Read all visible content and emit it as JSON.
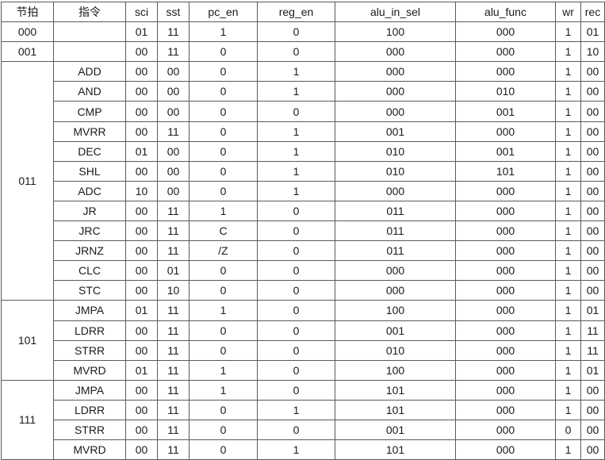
{
  "headers": [
    "节拍",
    "指令",
    "sci",
    "sst",
    "pc_en",
    "reg_en",
    "alu_in_sel",
    "alu_func",
    "wr",
    "rec"
  ],
  "groups": [
    {
      "beat": "000",
      "rows": [
        {
          "instr": "",
          "sci": "01",
          "sst": "11",
          "pc_en": "1",
          "reg_en": "0",
          "alu_in_sel": "100",
          "alu_func": "000",
          "wr": "1",
          "rec": "01"
        }
      ]
    },
    {
      "beat": "001",
      "rows": [
        {
          "instr": "",
          "sci": "00",
          "sst": "11",
          "pc_en": "0",
          "reg_en": "0",
          "alu_in_sel": "000",
          "alu_func": "000",
          "wr": "1",
          "rec": "10"
        }
      ]
    },
    {
      "beat": "011",
      "rows": [
        {
          "instr": "ADD",
          "sci": "00",
          "sst": "00",
          "pc_en": "0",
          "reg_en": "1",
          "alu_in_sel": "000",
          "alu_func": "000",
          "wr": "1",
          "rec": "00"
        },
        {
          "instr": "AND",
          "sci": "00",
          "sst": "00",
          "pc_en": "0",
          "reg_en": "1",
          "alu_in_sel": "000",
          "alu_func": "010",
          "wr": "1",
          "rec": "00"
        },
        {
          "instr": "CMP",
          "sci": "00",
          "sst": "00",
          "pc_en": "0",
          "reg_en": "0",
          "alu_in_sel": "000",
          "alu_func": "001",
          "wr": "1",
          "rec": "00"
        },
        {
          "instr": "MVRR",
          "sci": "00",
          "sst": "11",
          "pc_en": "0",
          "reg_en": "1",
          "alu_in_sel": "001",
          "alu_func": "000",
          "wr": "1",
          "rec": "00"
        },
        {
          "instr": "DEC",
          "sci": "01",
          "sst": "00",
          "pc_en": "0",
          "reg_en": "1",
          "alu_in_sel": "010",
          "alu_func": "001",
          "wr": "1",
          "rec": "00"
        },
        {
          "instr": "SHL",
          "sci": "00",
          "sst": "00",
          "pc_en": "0",
          "reg_en": "1",
          "alu_in_sel": "010",
          "alu_func": "101",
          "wr": "1",
          "rec": "00"
        },
        {
          "instr": "ADC",
          "sci": "10",
          "sst": "00",
          "pc_en": "0",
          "reg_en": "1",
          "alu_in_sel": "000",
          "alu_func": "000",
          "wr": "1",
          "rec": "00"
        },
        {
          "instr": "JR",
          "sci": "00",
          "sst": "11",
          "pc_en": "1",
          "reg_en": "0",
          "alu_in_sel": "011",
          "alu_func": "000",
          "wr": "1",
          "rec": "00"
        },
        {
          "instr": "JRC",
          "sci": "00",
          "sst": "11",
          "pc_en": "C",
          "reg_en": "0",
          "alu_in_sel": "011",
          "alu_func": "000",
          "wr": "1",
          "rec": "00"
        },
        {
          "instr": "JRNZ",
          "sci": "00",
          "sst": "11",
          "pc_en": "/Z",
          "reg_en": "0",
          "alu_in_sel": "011",
          "alu_func": "000",
          "wr": "1",
          "rec": "00"
        },
        {
          "instr": "CLC",
          "sci": "00",
          "sst": "01",
          "pc_en": "0",
          "reg_en": "0",
          "alu_in_sel": "000",
          "alu_func": "000",
          "wr": "1",
          "rec": "00"
        },
        {
          "instr": "STC",
          "sci": "00",
          "sst": "10",
          "pc_en": "0",
          "reg_en": "0",
          "alu_in_sel": "000",
          "alu_func": "000",
          "wr": "1",
          "rec": "00"
        }
      ]
    },
    {
      "beat": "101",
      "rows": [
        {
          "instr": "JMPA",
          "sci": "01",
          "sst": "11",
          "pc_en": "1",
          "reg_en": "0",
          "alu_in_sel": "100",
          "alu_func": "000",
          "wr": "1",
          "rec": "01"
        },
        {
          "instr": "LDRR",
          "sci": "00",
          "sst": "11",
          "pc_en": "0",
          "reg_en": "0",
          "alu_in_sel": "001",
          "alu_func": "000",
          "wr": "1",
          "rec": "11"
        },
        {
          "instr": "STRR",
          "sci": "00",
          "sst": "11",
          "pc_en": "0",
          "reg_en": "0",
          "alu_in_sel": "010",
          "alu_func": "000",
          "wr": "1",
          "rec": "11"
        },
        {
          "instr": "MVRD",
          "sci": "01",
          "sst": "11",
          "pc_en": "1",
          "reg_en": "0",
          "alu_in_sel": "100",
          "alu_func": "000",
          "wr": "1",
          "rec": "01"
        }
      ]
    },
    {
      "beat": "111",
      "rows": [
        {
          "instr": "JMPA",
          "sci": "00",
          "sst": "11",
          "pc_en": "1",
          "reg_en": "0",
          "alu_in_sel": "101",
          "alu_func": "000",
          "wr": "1",
          "rec": "00"
        },
        {
          "instr": "LDRR",
          "sci": "00",
          "sst": "11",
          "pc_en": "0",
          "reg_en": "1",
          "alu_in_sel": "101",
          "alu_func": "000",
          "wr": "1",
          "rec": "00"
        },
        {
          "instr": "STRR",
          "sci": "00",
          "sst": "11",
          "pc_en": "0",
          "reg_en": "0",
          "alu_in_sel": "001",
          "alu_func": "000",
          "wr": "0",
          "rec": "00"
        },
        {
          "instr": "MVRD",
          "sci": "00",
          "sst": "11",
          "pc_en": "0",
          "reg_en": "1",
          "alu_in_sel": "101",
          "alu_func": "000",
          "wr": "1",
          "rec": "00"
        }
      ]
    }
  ]
}
